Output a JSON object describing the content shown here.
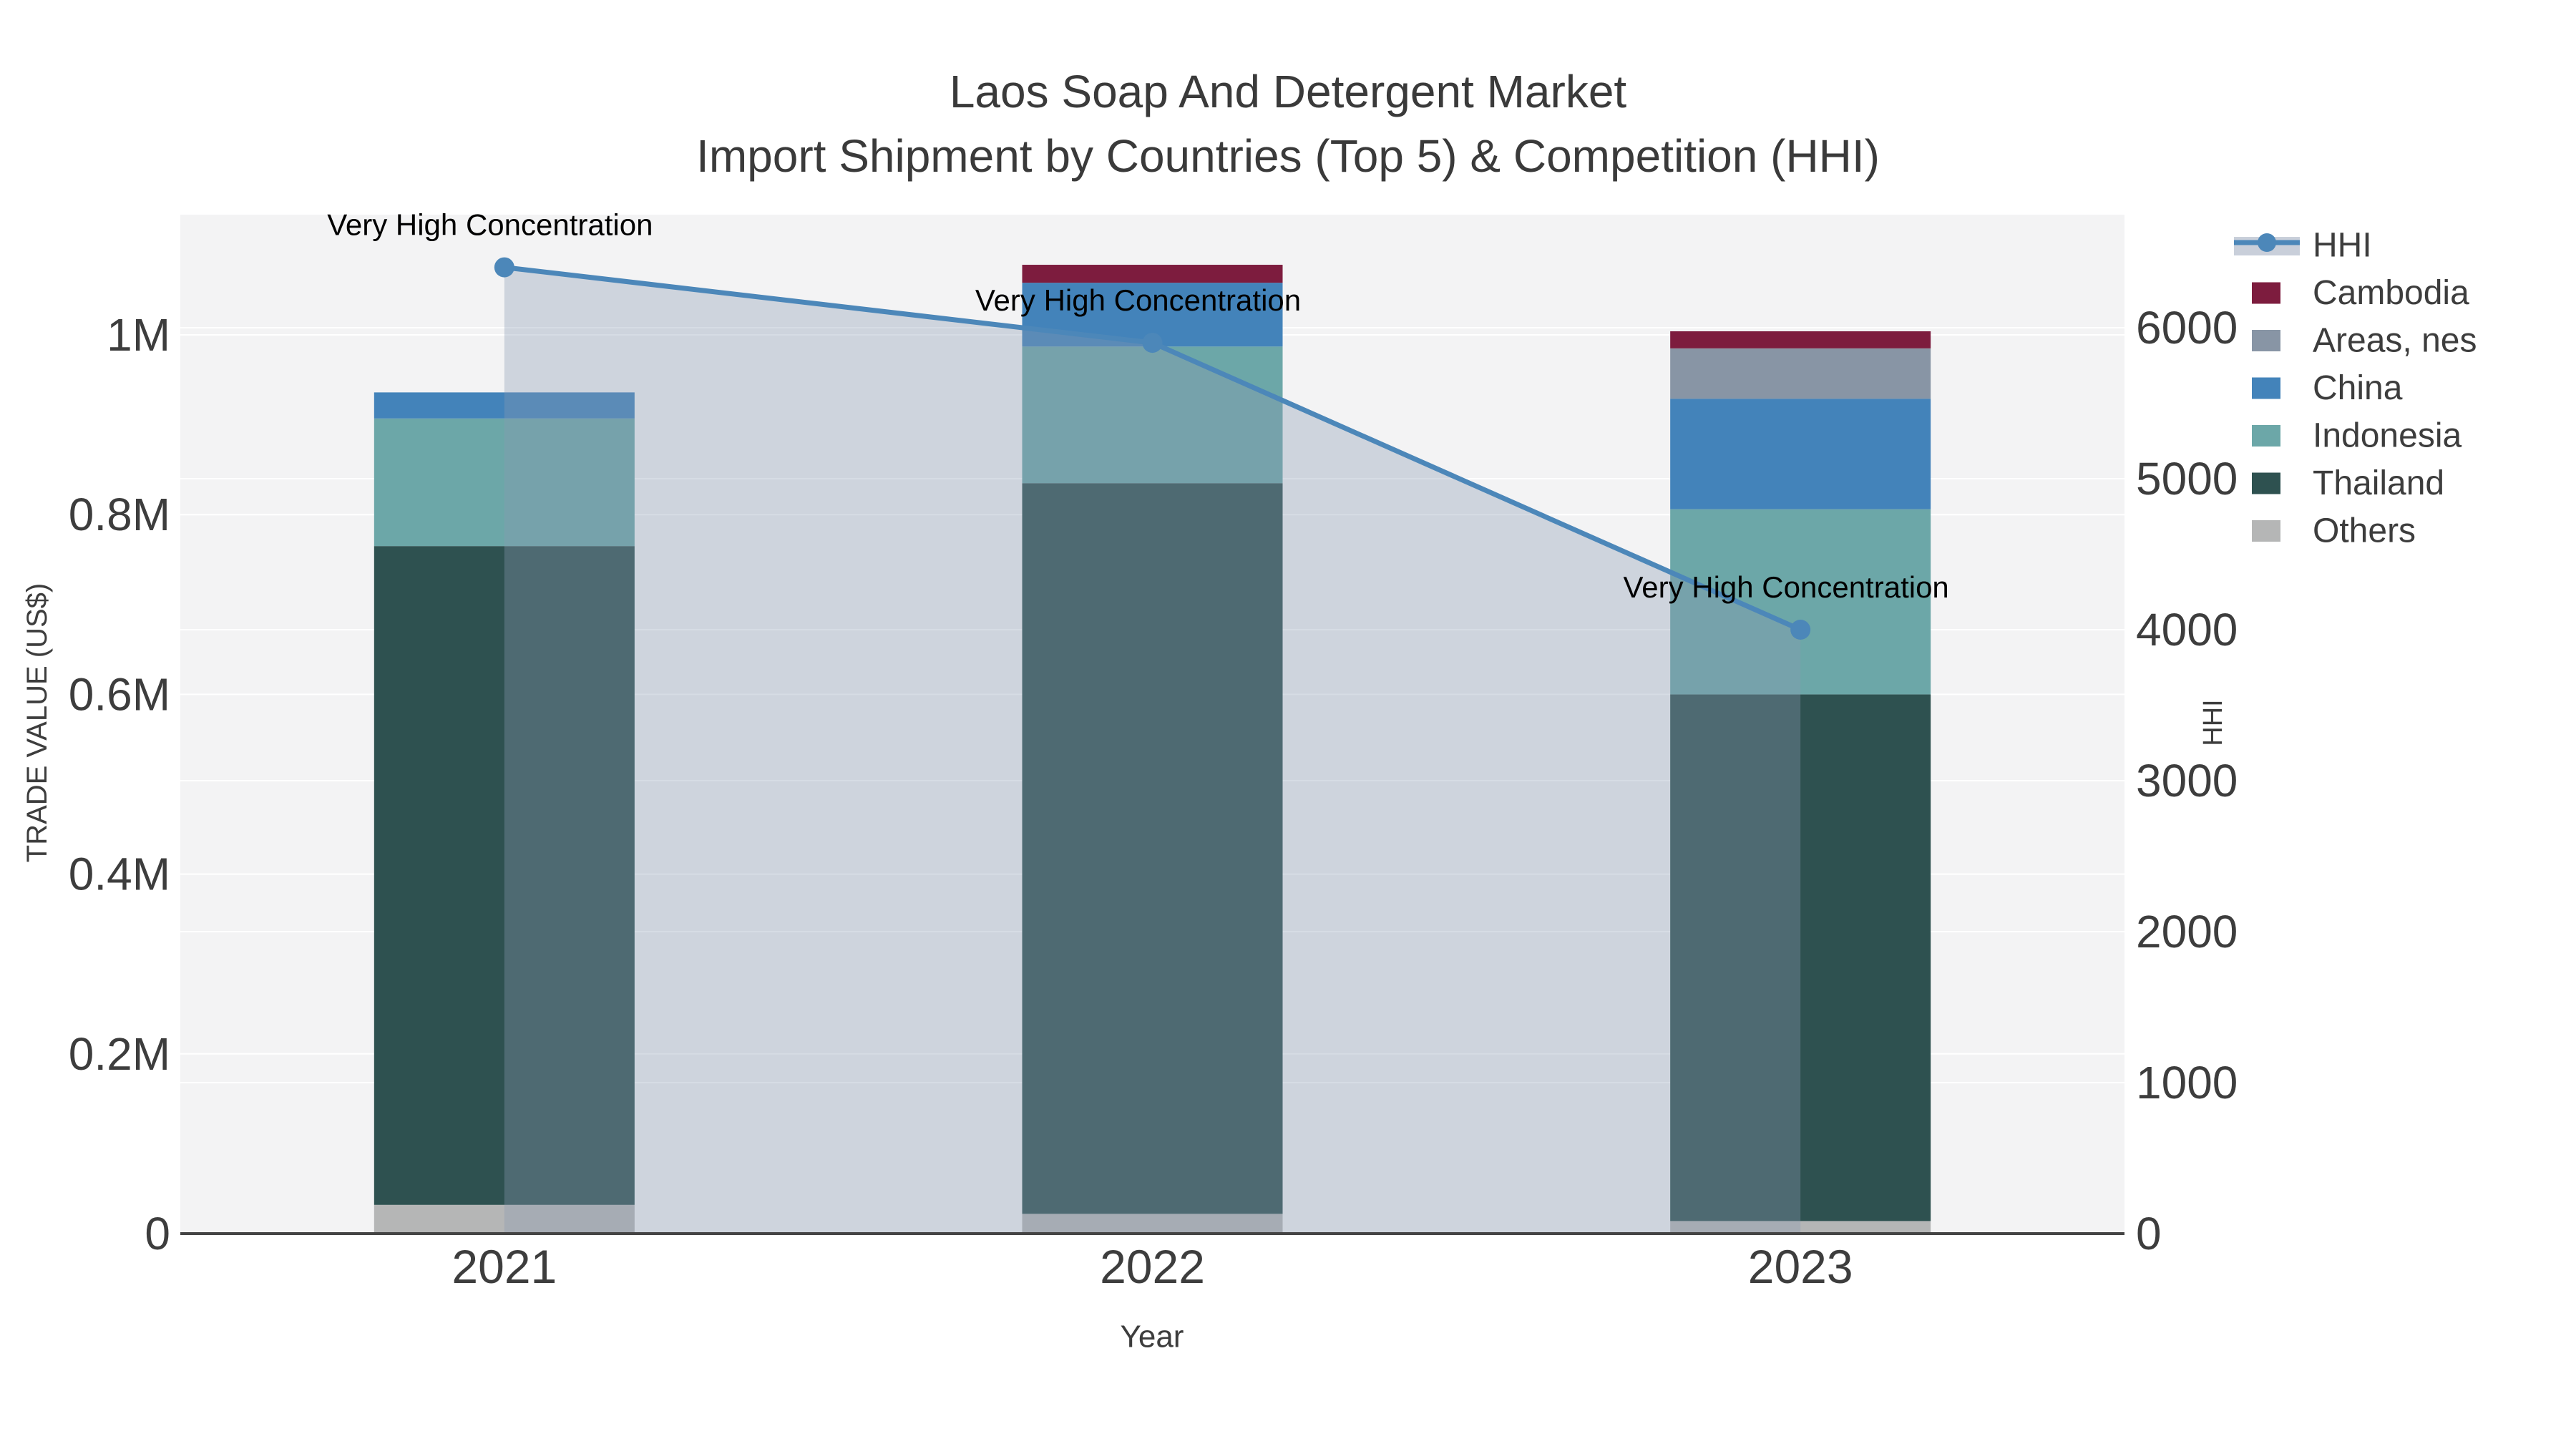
{
  "title": {
    "line1": "Laos Soap And Detergent Market",
    "line2": "Import Shipment by Countries (Top 5) & Competition (HHI)"
  },
  "axes": {
    "x": {
      "title": "Year",
      "tick_labels": [
        "2021",
        "2022",
        "2023"
      ]
    },
    "y_left": {
      "title": "TRADE VALUE (US$)",
      "ticks": [
        {
          "label": "0",
          "value": 0
        },
        {
          "label": "0.2M",
          "value": 200000
        },
        {
          "label": "0.4M",
          "value": 400000
        },
        {
          "label": "0.6M",
          "value": 600000
        },
        {
          "label": "0.8M",
          "value": 800000
        },
        {
          "label": "1M",
          "value": 1000000
        }
      ]
    },
    "y_right": {
      "title": "HHI",
      "ticks": [
        {
          "label": "0",
          "value": 0
        },
        {
          "label": "1000",
          "value": 1000
        },
        {
          "label": "2000",
          "value": 2000
        },
        {
          "label": "3000",
          "value": 3000
        },
        {
          "label": "4000",
          "value": 4000
        },
        {
          "label": "5000",
          "value": 5000
        },
        {
          "label": "6000",
          "value": 6000
        }
      ]
    }
  },
  "chart_data": {
    "type": "bar-line-combo",
    "categories": [
      "2021",
      "2022",
      "2023"
    ],
    "stacked_bar_unit": "US$",
    "bar_series": [
      {
        "name": "Others",
        "color": "#b5b6b6",
        "values": [
          32000,
          22000,
          14000
        ]
      },
      {
        "name": "Thailand",
        "color": "#2e5150",
        "values": [
          733000,
          813000,
          586000
        ]
      },
      {
        "name": "Indonesia",
        "color": "#6ca7a8",
        "values": [
          142000,
          152000,
          206000
        ]
      },
      {
        "name": "China",
        "color": "#4383ba",
        "values": [
          29000,
          71000,
          123000
        ]
      },
      {
        "name": "Areas, nes",
        "color": "#8895a5",
        "values": [
          0,
          0,
          56000
        ]
      },
      {
        "name": "Cambodia",
        "color": "#7d1c3e",
        "values": [
          0,
          20000,
          19000
        ]
      }
    ],
    "bar_totals": [
      936000,
      1078000,
      1004000
    ],
    "line_series": {
      "name": "HHI",
      "color": "#4c87b9",
      "area_fill": "rgba(137,154,177,0.35)",
      "values": [
        6400,
        5900,
        4000
      ]
    },
    "annotations": [
      {
        "text": "Very High Concentration",
        "category": "2021"
      },
      {
        "text": "Very High Concentration",
        "category": "2022"
      },
      {
        "text": "Very High Concentration",
        "category": "2023"
      }
    ],
    "y_left_range": [
      0,
      1134000
    ],
    "y_right_range": [
      0,
      6750
    ],
    "grid": true,
    "legend_position": "right"
  },
  "legend": {
    "items": [
      {
        "label": "HHI",
        "type": "line",
        "color": "#4c87b9",
        "band": "#c9cfda"
      },
      {
        "label": "Cambodia",
        "type": "swatch",
        "color": "#7d1c3e"
      },
      {
        "label": "Areas, nes",
        "type": "swatch",
        "color": "#8895a5"
      },
      {
        "label": "China",
        "type": "swatch",
        "color": "#4383ba"
      },
      {
        "label": "Indonesia",
        "type": "swatch",
        "color": "#6ca7a8"
      },
      {
        "label": "Thailand",
        "type": "swatch",
        "color": "#2e5150"
      },
      {
        "label": "Others",
        "type": "swatch",
        "color": "#b5b6b6"
      }
    ]
  },
  "colors": {
    "plot_background": "#f3f3f4",
    "gridline": "#ffffff",
    "axis_line": "#444444",
    "tick_text": "#3d3d3d",
    "title_text": "#3a3a3a",
    "annotation_text": "#000000"
  }
}
